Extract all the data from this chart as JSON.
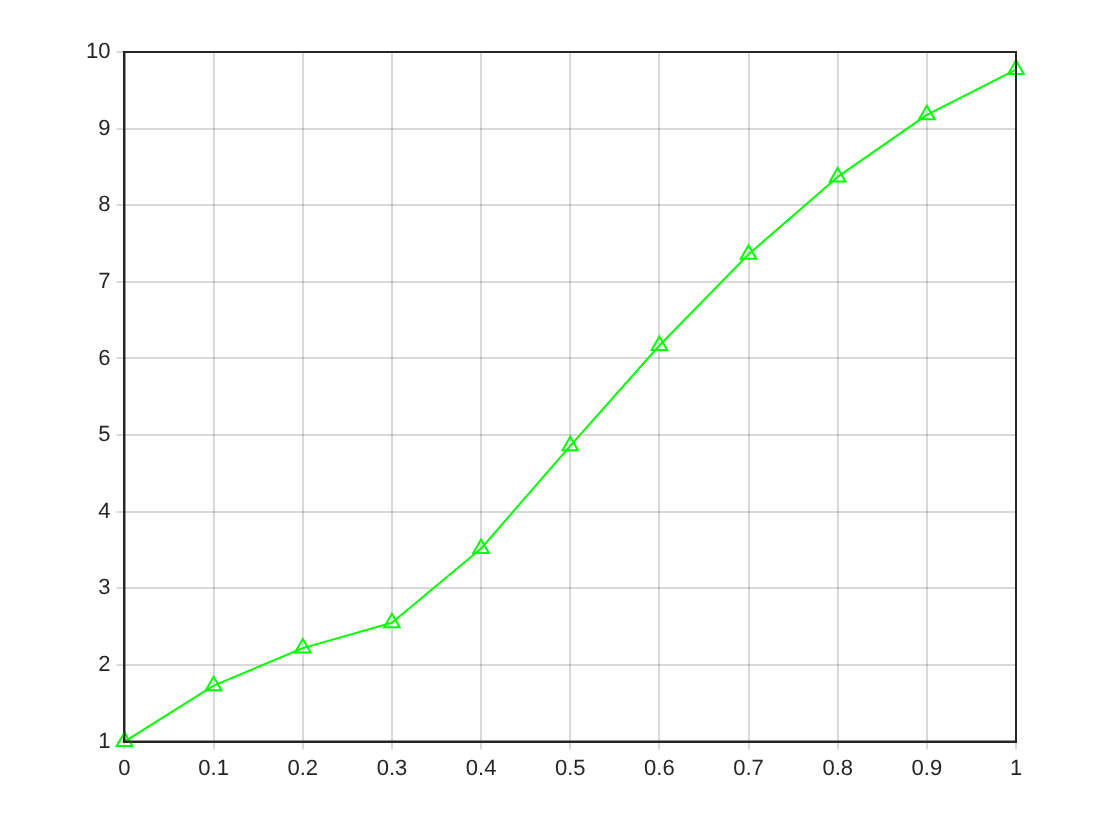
{
  "chart_data": {
    "type": "line",
    "x": [
      0,
      0.1,
      0.2,
      0.3,
      0.4,
      0.5,
      0.6,
      0.7,
      0.8,
      0.9,
      1
    ],
    "series": [
      {
        "color": "#00ff00",
        "values": [
          1.0,
          1.73,
          2.22,
          2.55,
          3.52,
          4.86,
          6.17,
          7.36,
          8.37,
          9.18,
          9.77
        ]
      }
    ],
    "xlim": [
      0,
      1
    ],
    "xticks": [
      0,
      0.1,
      0.2,
      0.3,
      0.4,
      0.5,
      0.6,
      0.7,
      0.8,
      0.9,
      1
    ],
    "ylim": [
      1,
      10
    ],
    "yticks": [
      1,
      2,
      3,
      4,
      5,
      6,
      7,
      8,
      9,
      10
    ],
    "grid": true,
    "marker": "triangle",
    "line_style": "solid",
    "legend": false
  }
}
